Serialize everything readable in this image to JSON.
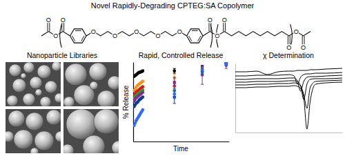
{
  "title": "Novel Rapidly-Degrading CPTEG:SA Copolymer",
  "structure": {
    "atom_labels": [
      "O",
      "O",
      "O",
      "O",
      "O",
      "O",
      "O",
      "O",
      "O",
      "O",
      "O",
      "O",
      "O",
      "O"
    ]
  },
  "images": {
    "title": "Nanoparticle Libraries"
  },
  "chart_data": [
    {
      "type": "scatter",
      "title": "Rapid, Controlled Release",
      "x_label": "Time",
      "y_label": "% Release",
      "xlim": [
        0,
        100
      ],
      "ylim": [
        0,
        100
      ],
      "xticks": [],
      "yticks": [],
      "tick_labels": false,
      "marker": "circle",
      "x": [
        1,
        2,
        3,
        4,
        5,
        6,
        7,
        8,
        9,
        10,
        43,
        72,
        97
      ],
      "series": [
        {
          "color": "#000000",
          "values": [
            82,
            83,
            84,
            85,
            86,
            87,
            87,
            88,
            88,
            89,
            89,
            94,
            99
          ],
          "errors": [
            null,
            null,
            null,
            null,
            null,
            null,
            null,
            null,
            null,
            null,
            3,
            2,
            1
          ]
        },
        {
          "color": "#f7931e",
          "values": [
            64,
            66,
            68,
            70,
            71,
            72,
            73,
            74,
            75,
            76,
            80,
            91,
            98
          ],
          "errors": [
            null,
            null,
            null,
            null,
            null,
            null,
            null,
            null,
            null,
            null,
            5,
            3,
            1
          ]
        },
        {
          "color": "#d7191c",
          "values": [
            58,
            60,
            62,
            63,
            64,
            65,
            66,
            67,
            68,
            69,
            70,
            88,
            97
          ],
          "errors": [
            null,
            null,
            null,
            null,
            null,
            null,
            null,
            null,
            null,
            null,
            6,
            4,
            2
          ]
        },
        {
          "color": "#33a02c",
          "values": [
            54,
            56,
            58,
            59,
            60,
            61,
            62,
            63,
            64,
            65,
            64,
            87,
            98
          ],
          "errors": [
            null,
            null,
            null,
            null,
            null,
            null,
            null,
            null,
            null,
            null,
            5,
            4,
            2
          ]
        },
        {
          "color": "#7b3294",
          "values": [
            51,
            53,
            55,
            56,
            57,
            58,
            59,
            60,
            61,
            62,
            74,
            84,
            96
          ],
          "errors": [
            null,
            null,
            null,
            null,
            null,
            null,
            null,
            null,
            null,
            null,
            7,
            12,
            4
          ]
        },
        {
          "color": "#0b3d91",
          "values": [
            44,
            46,
            48,
            49,
            50,
            52,
            53,
            54,
            55,
            56,
            56,
            89,
            99
          ],
          "errors": [
            null,
            null,
            null,
            null,
            null,
            null,
            null,
            null,
            null,
            null,
            8,
            3,
            1
          ]
        },
        {
          "color": "#2f6bff",
          "values": [
            20,
            23,
            26,
            28,
            30,
            32,
            34,
            36,
            38,
            40,
            60,
            90,
            98
          ],
          "errors": [
            null,
            null,
            null,
            null,
            null,
            null,
            null,
            null,
            null,
            null,
            6,
            4,
            2
          ]
        }
      ]
    },
    {
      "type": "line",
      "title": "χ Determination",
      "xlim": [
        0,
        100
      ],
      "ylim": [
        0,
        100
      ],
      "xticks": [],
      "yticks": [],
      "tick_labels": false,
      "x": [
        0,
        10,
        20,
        30,
        40,
        50,
        55,
        58,
        61,
        64,
        67,
        70,
        75,
        85,
        100
      ],
      "series": [
        {
          "color": "#000000",
          "values": [
            88,
            88,
            89,
            84,
            88,
            89,
            89,
            90,
            90,
            90,
            90,
            91,
            91,
            92,
            93
          ]
        },
        {
          "color": "#000000",
          "values": [
            82,
            82,
            83,
            83,
            83,
            84,
            82,
            70,
            80,
            84,
            85,
            85,
            86,
            86,
            87
          ]
        },
        {
          "color": "#000000",
          "values": [
            77,
            77,
            78,
            78,
            78,
            79,
            79,
            75,
            60,
            74,
            80,
            81,
            81,
            82,
            83
          ]
        },
        {
          "color": "#000000",
          "values": [
            73,
            73,
            74,
            74,
            74,
            75,
            75,
            74,
            68,
            48,
            70,
            77,
            78,
            78,
            79
          ]
        },
        {
          "color": "#000000",
          "values": [
            69,
            69,
            70,
            70,
            71,
            71,
            72,
            71,
            68,
            55,
            35,
            65,
            74,
            75,
            76
          ]
        },
        {
          "color": "#000000",
          "values": [
            65,
            65,
            66,
            66,
            67,
            67,
            68,
            67,
            64,
            50,
            5,
            45,
            70,
            72,
            73
          ]
        }
      ]
    }
  ]
}
